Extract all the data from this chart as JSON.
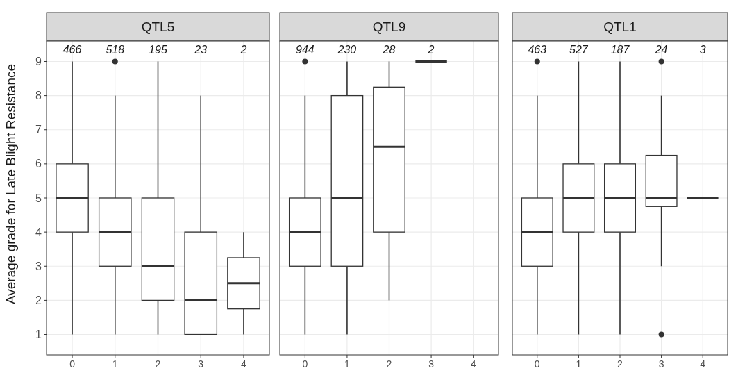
{
  "chart_data": [
    {
      "type": "box",
      "title": "QTL5",
      "ylabel": "Average grade for Late Blight Resistance",
      "categories": [
        "0",
        "1",
        "2",
        "3",
        "4"
      ],
      "ylim": [
        0.4,
        9.6
      ],
      "yticks": [
        1,
        2,
        3,
        4,
        5,
        6,
        7,
        8,
        9
      ],
      "grid": true,
      "boxes": [
        {
          "low": 1,
          "q1": 4,
          "median": 5,
          "q3": 6,
          "high": 9
        },
        {
          "low": 1,
          "q1": 3,
          "median": 4,
          "q3": 5,
          "high": 8,
          "outliers": [
            9
          ]
        },
        {
          "low": 1,
          "q1": 2,
          "median": 3,
          "q3": 5,
          "high": 9
        },
        {
          "low": 1,
          "q1": 1,
          "median": 2,
          "q3": 4,
          "high": 8
        },
        {
          "low": 1,
          "q1": 1.75,
          "median": 2.5,
          "q3": 3.25,
          "high": 4
        }
      ],
      "annotations": [
        "466",
        "518",
        "195",
        "23",
        "2"
      ]
    },
    {
      "type": "box",
      "title": "QTL9",
      "categories": [
        "0",
        "1",
        "2",
        "3",
        "4"
      ],
      "ylim": [
        0.4,
        9.6
      ],
      "yticks": [
        1,
        2,
        3,
        4,
        5,
        6,
        7,
        8,
        9
      ],
      "grid": true,
      "tick_labels": "x",
      "boxes": [
        {
          "low": 1,
          "q1": 3,
          "median": 4,
          "q3": 5,
          "high": 8,
          "outliers": [
            9
          ]
        },
        {
          "low": 1,
          "q1": 3,
          "median": 5,
          "q3": 8,
          "high": 9
        },
        {
          "low": 2,
          "q1": 4,
          "median": 6.5,
          "q3": 8.25,
          "high": 9
        },
        {
          "low": 9,
          "q1": 9,
          "median": 9,
          "q3": 9,
          "high": 9
        },
        null
      ],
      "annotations": [
        "944",
        "230",
        "28",
        "2"
      ]
    },
    {
      "type": "box",
      "title": "QTL1",
      "categories": [
        "0",
        "1",
        "2",
        "3",
        "4"
      ],
      "ylim": [
        0.4,
        9.6
      ],
      "yticks": [
        1,
        2,
        3,
        4,
        5,
        6,
        7,
        8,
        9
      ],
      "grid": true,
      "tick_labels": "x",
      "boxes": [
        {
          "low": 1,
          "q1": 3,
          "median": 4,
          "q3": 5,
          "high": 8,
          "outliers": [
            9
          ]
        },
        {
          "low": 1,
          "q1": 4,
          "median": 5,
          "q3": 6,
          "high": 9
        },
        {
          "low": 1,
          "q1": 4,
          "median": 5,
          "q3": 6,
          "high": 9
        },
        {
          "low": 3,
          "q1": 4.75,
          "median": 5,
          "q3": 6.25,
          "high": 8,
          "outliers": [
            1,
            9
          ]
        },
        {
          "low": 5,
          "q1": 5,
          "median": 5,
          "q3": 5,
          "high": 5
        }
      ],
      "annotations": [
        "463",
        "527",
        "187",
        "24",
        "3"
      ]
    }
  ]
}
